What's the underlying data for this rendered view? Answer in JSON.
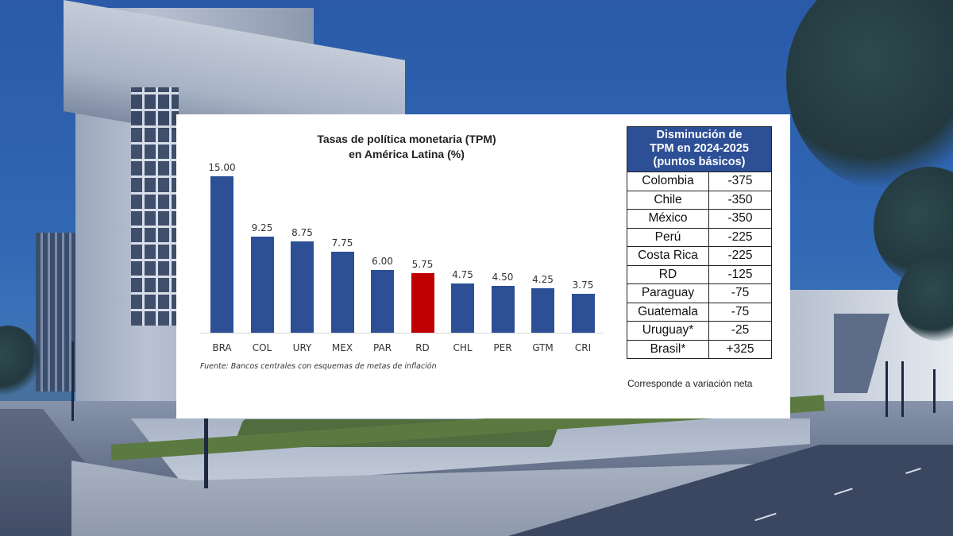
{
  "chart_data": {
    "type": "bar",
    "title": "Tasas de política monetaria (TPM) en América Latina (%)",
    "title_lines": [
      "Tasas de política monetaria (TPM)",
      "en América Latina (%)"
    ],
    "categories": [
      "BRA",
      "COL",
      "URY",
      "MEX",
      "PAR",
      "RD",
      "CHL",
      "PER",
      "GTM",
      "CRI"
    ],
    "values": [
      15.0,
      9.25,
      8.75,
      7.75,
      6.0,
      5.75,
      4.75,
      4.5,
      4.25,
      3.75
    ],
    "value_labels": [
      "15.00",
      "9.25",
      "8.75",
      "7.75",
      "6.00",
      "5.75",
      "4.75",
      "4.50",
      "4.25",
      "3.75"
    ],
    "highlight_category": "RD",
    "xlabel": "",
    "ylabel": "",
    "ylim": [
      0,
      16
    ],
    "grid": false,
    "legend": "none",
    "source_note": "Fuente: Bancos centrales con esquemas de metas de inflación",
    "colors": {
      "bar": "#2c4f96",
      "highlight": "#c00000"
    }
  },
  "table": {
    "header_lines": [
      "Disminución de",
      "TPM en 2024-2025",
      "(puntos básicos)"
    ],
    "rows": [
      {
        "country": "Colombia",
        "value": "-375"
      },
      {
        "country": "Chile",
        "value": "-350"
      },
      {
        "country": "México",
        "value": "-350"
      },
      {
        "country": "Perú",
        "value": "-225"
      },
      {
        "country": "Costa Rica",
        "value": "-225"
      },
      {
        "country": "RD",
        "value": "-125"
      },
      {
        "country": "Paraguay",
        "value": "-75"
      },
      {
        "country": "Guatemala",
        "value": "-75"
      },
      {
        "country": "Uruguay*",
        "value": "-25"
      },
      {
        "country": "Brasil*",
        "value": "+325"
      }
    ],
    "note": "Corresponde a variación neta",
    "header_color": "#2c4f96"
  }
}
